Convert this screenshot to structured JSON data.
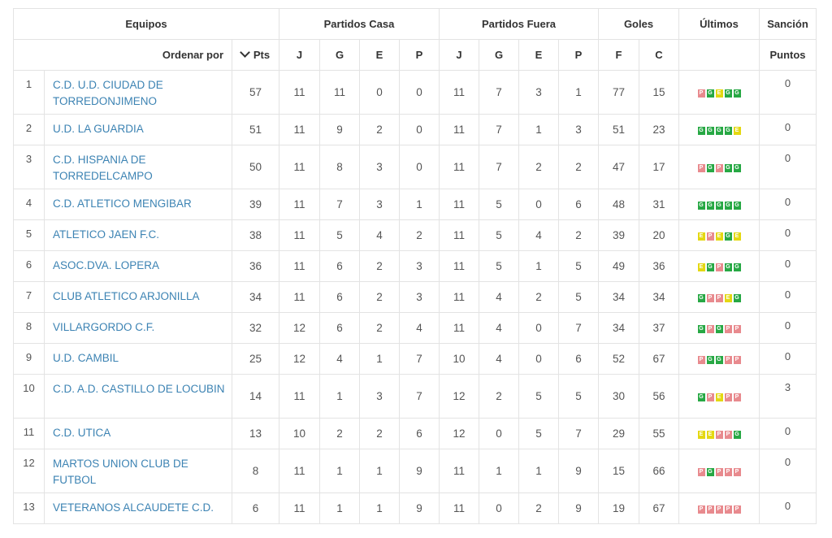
{
  "header": {
    "equipos": "Equipos",
    "partidos_casa": "Partidos Casa",
    "partidos_fuera": "Partidos Fuera",
    "goles": "Goles",
    "ultimos": "Últimos",
    "sancion": "Sanción",
    "ordenar_por": "Ordenar por",
    "pts": "Pts",
    "j": "J",
    "g": "G",
    "e": "E",
    "p": "P",
    "f": "F",
    "c": "C",
    "puntos": "Puntos",
    "sort_icon": "chevron-down-icon"
  },
  "colors": {
    "link": "#3c83b3",
    "perdido": "#e88a8e",
    "ganado": "#27a844",
    "empate": "#e4d812"
  },
  "rows": [
    {
      "pos": "1",
      "team": "C.D. U.D. CIUDAD DE TORREDONJIMENO",
      "pts": "57",
      "hj": "11",
      "hg": "11",
      "he": "0",
      "hp": "0",
      "aj": "11",
      "ag": "7",
      "ae": "3",
      "ap": "1",
      "f": "77",
      "c": "15",
      "last": [
        "P",
        "G",
        "E",
        "G",
        "G"
      ],
      "pen": "0"
    },
    {
      "pos": "2",
      "team": "U.D. LA GUARDIA",
      "pts": "51",
      "hj": "11",
      "hg": "9",
      "he": "2",
      "hp": "0",
      "aj": "11",
      "ag": "7",
      "ae": "1",
      "ap": "3",
      "f": "51",
      "c": "23",
      "last": [
        "G",
        "G",
        "G",
        "G",
        "E"
      ],
      "pen": "0"
    },
    {
      "pos": "3",
      "team": "C.D. HISPANIA DE TORREDELCAMPO",
      "pts": "50",
      "hj": "11",
      "hg": "8",
      "he": "3",
      "hp": "0",
      "aj": "11",
      "ag": "7",
      "ae": "2",
      "ap": "2",
      "f": "47",
      "c": "17",
      "last": [
        "P",
        "G",
        "P",
        "G",
        "G"
      ],
      "pen": "0"
    },
    {
      "pos": "4",
      "team": "C.D. ATLETICO MENGIBAR",
      "pts": "39",
      "hj": "11",
      "hg": "7",
      "he": "3",
      "hp": "1",
      "aj": "11",
      "ag": "5",
      "ae": "0",
      "ap": "6",
      "f": "48",
      "c": "31",
      "last": [
        "G",
        "G",
        "G",
        "G",
        "G"
      ],
      "pen": "0"
    },
    {
      "pos": "5",
      "team": "ATLETICO JAEN F.C.",
      "pts": "38",
      "hj": "11",
      "hg": "5",
      "he": "4",
      "hp": "2",
      "aj": "11",
      "ag": "5",
      "ae": "4",
      "ap": "2",
      "f": "39",
      "c": "20",
      "last": [
        "E",
        "P",
        "E",
        "G",
        "E"
      ],
      "pen": "0"
    },
    {
      "pos": "6",
      "team": "ASOC.DVA. LOPERA",
      "pts": "36",
      "hj": "11",
      "hg": "6",
      "he": "2",
      "hp": "3",
      "aj": "11",
      "ag": "5",
      "ae": "1",
      "ap": "5",
      "f": "49",
      "c": "36",
      "last": [
        "E",
        "G",
        "P",
        "G",
        "G"
      ],
      "pen": "0"
    },
    {
      "pos": "7",
      "team": "CLUB ATLETICO ARJONILLA",
      "pts": "34",
      "hj": "11",
      "hg": "6",
      "he": "2",
      "hp": "3",
      "aj": "11",
      "ag": "4",
      "ae": "2",
      "ap": "5",
      "f": "34",
      "c": "34",
      "last": [
        "G",
        "P",
        "P",
        "E",
        "G"
      ],
      "pen": "0"
    },
    {
      "pos": "8",
      "team": "VILLARGORDO C.F.",
      "pts": "32",
      "hj": "12",
      "hg": "6",
      "he": "2",
      "hp": "4",
      "aj": "11",
      "ag": "4",
      "ae": "0",
      "ap": "7",
      "f": "34",
      "c": "37",
      "last": [
        "G",
        "P",
        "G",
        "P",
        "P"
      ],
      "pen": "0"
    },
    {
      "pos": "9",
      "team": "U.D. CAMBIL",
      "pts": "25",
      "hj": "12",
      "hg": "4",
      "he": "1",
      "hp": "7",
      "aj": "10",
      "ag": "4",
      "ae": "0",
      "ap": "6",
      "f": "52",
      "c": "67",
      "last": [
        "P",
        "G",
        "G",
        "P",
        "P"
      ],
      "pen": "0"
    },
    {
      "pos": "10",
      "team": "C.D. A.D. CASTILLO DE LOCUBIN",
      "pts": "14",
      "hj": "11",
      "hg": "1",
      "he": "3",
      "hp": "7",
      "aj": "12",
      "ag": "2",
      "ae": "5",
      "ap": "5",
      "f": "30",
      "c": "56",
      "last": [
        "G",
        "P",
        "E",
        "P",
        "P"
      ],
      "pen": "3"
    },
    {
      "pos": "11",
      "team": "C.D. UTICA",
      "pts": "13",
      "hj": "10",
      "hg": "2",
      "he": "2",
      "hp": "6",
      "aj": "12",
      "ag": "0",
      "ae": "5",
      "ap": "7",
      "f": "29",
      "c": "55",
      "last": [
        "E",
        "E",
        "P",
        "P",
        "G"
      ],
      "pen": "0"
    },
    {
      "pos": "12",
      "team": "MARTOS UNION CLUB DE FUTBOL",
      "pts": "8",
      "hj": "11",
      "hg": "1",
      "he": "1",
      "hp": "9",
      "aj": "11",
      "ag": "1",
      "ae": "1",
      "ap": "9",
      "f": "15",
      "c": "66",
      "last": [
        "P",
        "G",
        "P",
        "P",
        "P"
      ],
      "pen": "0"
    },
    {
      "pos": "13",
      "team": "VETERANOS ALCAUDETE C.D.",
      "pts": "6",
      "hj": "11",
      "hg": "1",
      "he": "1",
      "hp": "9",
      "aj": "11",
      "ag": "0",
      "ae": "2",
      "ap": "9",
      "f": "19",
      "c": "67",
      "last": [
        "P",
        "P",
        "P",
        "P",
        "P"
      ],
      "pen": "0"
    }
  ]
}
